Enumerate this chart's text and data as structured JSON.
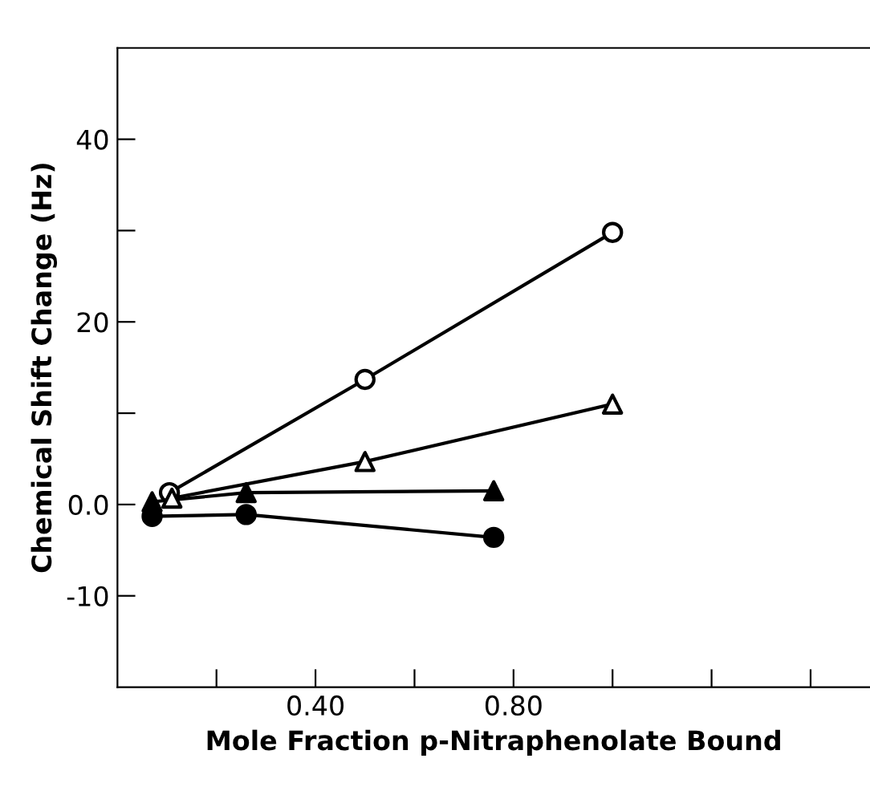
{
  "chart_data": {
    "type": "line",
    "xlabel": "Mole Fraction p-Nitraphenolate Bound",
    "ylabel": "Chemical Shift Change (Hz)",
    "xlim": [
      0,
      1.52
    ],
    "ylim": [
      -20,
      50
    ],
    "xticks": [
      {
        "value": 0.2,
        "label": null
      },
      {
        "value": 0.4,
        "label": "0.40"
      },
      {
        "value": 0.6,
        "label": null
      },
      {
        "value": 0.8,
        "label": "0.80"
      },
      {
        "value": 1.0,
        "label": null
      },
      {
        "value": 1.2,
        "label": null
      },
      {
        "value": 1.4,
        "label": null
      }
    ],
    "yticks": [
      {
        "value": -10,
        "label": "-10"
      },
      {
        "value": 0,
        "label": "0.0"
      },
      {
        "value": 10,
        "label": null
      },
      20,
      {
        "value": 30,
        "label": null
      },
      40
    ],
    "grid": false,
    "series": [
      {
        "color": "#000000",
        "marker": "circle",
        "colors": [
          "#ffffff",
          "#ffffff",
          "#ffffff"
        ],
        "x": [
          0.105,
          0.5,
          1.0
        ],
        "values": [
          1.3,
          13.7,
          29.8
        ]
      },
      {
        "color": "#000000",
        "marker": "triangle",
        "colors": [
          "#ffffff",
          "#ffffff",
          "#ffffff"
        ],
        "x": [
          0.11,
          0.5,
          1.0
        ],
        "values": [
          0.7,
          4.7,
          11.0
        ]
      },
      {
        "color": "#000000",
        "marker": "triangle",
        "colors": [
          "#000000",
          "#000000",
          "#000000"
        ],
        "x": [
          0.07,
          0.26,
          0.76
        ],
        "values": [
          0.3,
          1.3,
          1.5
        ]
      },
      {
        "color": "#000000",
        "marker": "circle",
        "colors": [
          "#000000",
          "#000000",
          "#000000"
        ],
        "x": [
          0.07,
          0.26,
          0.76
        ],
        "values": [
          -1.3,
          -1.1,
          -3.6
        ]
      }
    ]
  }
}
